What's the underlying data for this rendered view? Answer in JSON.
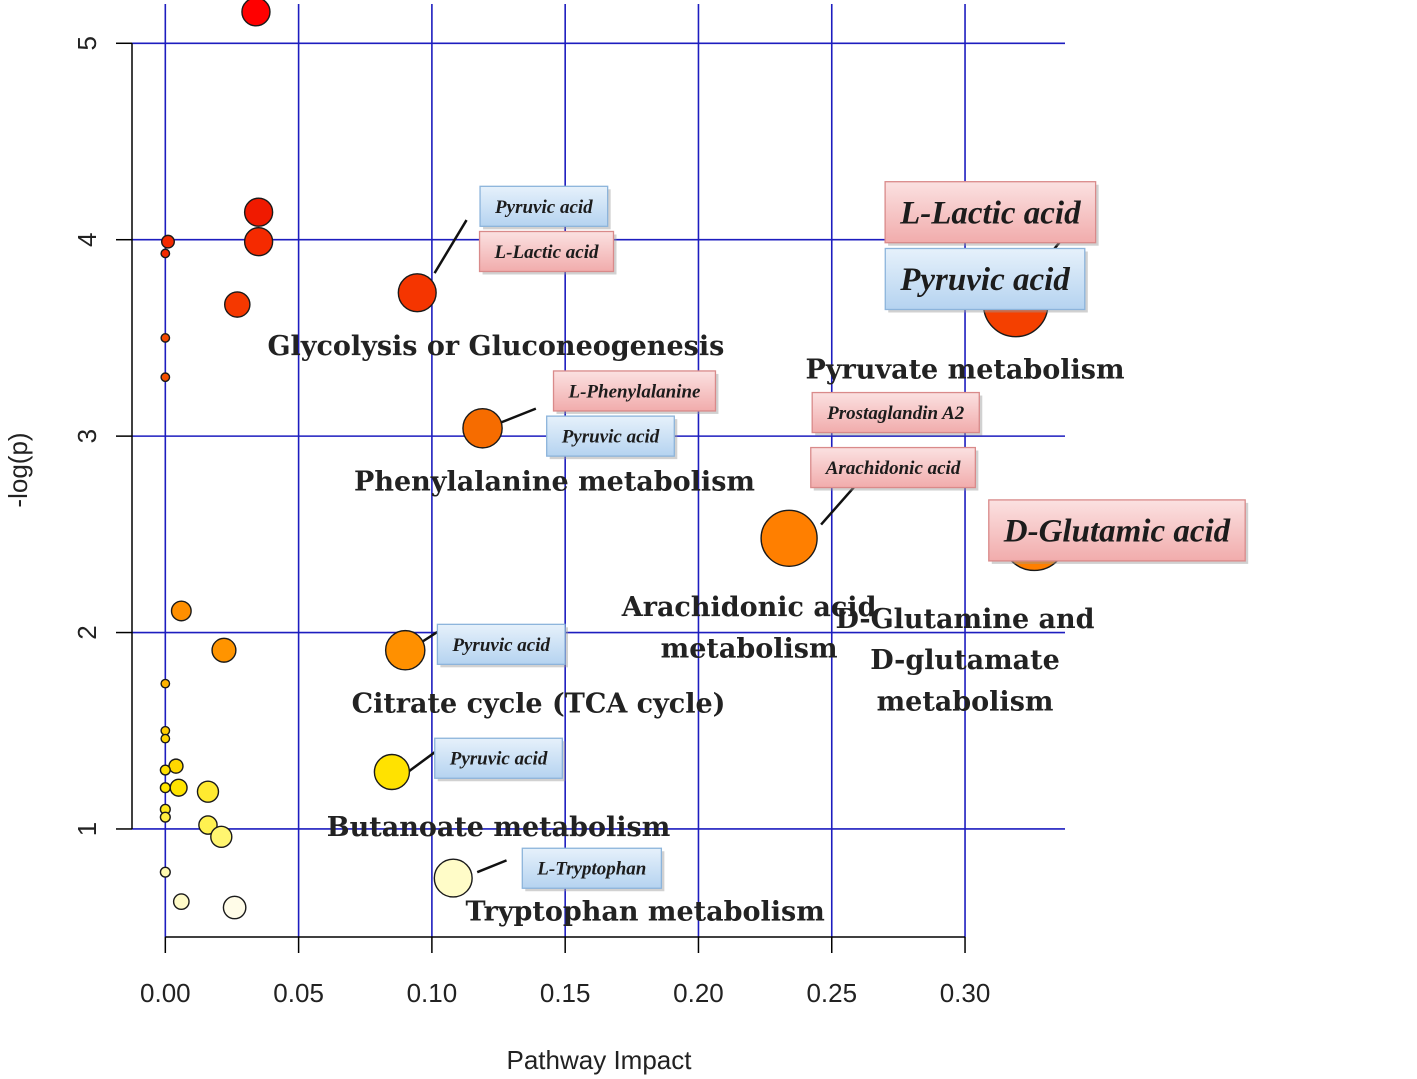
{
  "chart_data": {
    "type": "scatter",
    "title": "",
    "xlabel": "Pathway Impact",
    "ylabel": "-log(p)",
    "xlim": [
      -0.0125,
      0.3375
    ],
    "ylim": [
      0.45,
      5.2
    ],
    "xticks": [
      0.0,
      0.05,
      0.1,
      0.15,
      0.2,
      0.25,
      0.3
    ],
    "xtick_labels": [
      "0.00",
      "0.05",
      "0.10",
      "0.15",
      "0.20",
      "0.25",
      "0.30"
    ],
    "yticks": [
      1,
      2,
      3,
      4,
      5
    ],
    "ytick_labels": [
      "1",
      "2",
      "3",
      "4",
      "5"
    ],
    "grid": true,
    "grid_color": "#1d1dbf",
    "points": [
      {
        "x": 0.034,
        "y": 5.16,
        "size": 1,
        "color": "#ff0000"
      },
      {
        "x": 0.035,
        "y": 4.14,
        "size": 1,
        "color": "#f01a00"
      },
      {
        "x": 0.035,
        "y": 3.99,
        "size": 1,
        "color": "#f52a00"
      },
      {
        "x": 0.001,
        "y": 3.99,
        "size": 0.45,
        "color": "#f42a00"
      },
      {
        "x": 0.0,
        "y": 3.93,
        "size": 0.3,
        "color": "#f42a00"
      },
      {
        "x": 0.027,
        "y": 3.67,
        "size": 0.9,
        "color": "#f53800"
      },
      {
        "x": 0.0,
        "y": 3.5,
        "size": 0.3,
        "color": "#f54a00"
      },
      {
        "x": 0.0,
        "y": 3.3,
        "size": 0.3,
        "color": "#f55000"
      },
      {
        "x": 0.0945,
        "y": 3.73,
        "size": 1.35,
        "color": "#f53500"
      },
      {
        "x": 0.119,
        "y": 3.04,
        "size": 1.4,
        "color": "#f66c00"
      },
      {
        "x": 0.234,
        "y": 2.48,
        "size": 2.0,
        "color": "#ff7f00"
      },
      {
        "x": 0.319,
        "y": 3.67,
        "size": 2.3,
        "color": "#f44000"
      },
      {
        "x": 0.326,
        "y": 2.48,
        "size": 2.3,
        "color": "#ff7f00"
      },
      {
        "x": 0.006,
        "y": 2.11,
        "size": 0.7,
        "color": "#ff8f00"
      },
      {
        "x": 0.022,
        "y": 1.91,
        "size": 0.85,
        "color": "#ff9400"
      },
      {
        "x": 0.09,
        "y": 1.91,
        "size": 1.4,
        "color": "#ff9000"
      },
      {
        "x": 0.0,
        "y": 1.74,
        "size": 0.3,
        "color": "#ffb300"
      },
      {
        "x": 0.0,
        "y": 1.5,
        "size": 0.3,
        "color": "#ffcc00"
      },
      {
        "x": 0.0,
        "y": 1.46,
        "size": 0.3,
        "color": "#ffd400"
      },
      {
        "x": 0.004,
        "y": 1.32,
        "size": 0.5,
        "color": "#ffd800"
      },
      {
        "x": 0.0,
        "y": 1.3,
        "size": 0.35,
        "color": "#ffe000"
      },
      {
        "x": 0.0,
        "y": 1.21,
        "size": 0.35,
        "color": "#ffe600"
      },
      {
        "x": 0.005,
        "y": 1.21,
        "size": 0.6,
        "color": "#ffe400"
      },
      {
        "x": 0.0,
        "y": 1.1,
        "size": 0.35,
        "color": "#ffea1a"
      },
      {
        "x": 0.0,
        "y": 1.06,
        "size": 0.35,
        "color": "#ffee40"
      },
      {
        "x": 0.016,
        "y": 1.19,
        "size": 0.75,
        "color": "#ffea30"
      },
      {
        "x": 0.016,
        "y": 1.02,
        "size": 0.65,
        "color": "#fff150"
      },
      {
        "x": 0.021,
        "y": 0.96,
        "size": 0.75,
        "color": "#fff570"
      },
      {
        "x": 0.085,
        "y": 1.29,
        "size": 1.25,
        "color": "#ffe200"
      },
      {
        "x": 0.0,
        "y": 0.78,
        "size": 0.35,
        "color": "#fff9b0"
      },
      {
        "x": 0.006,
        "y": 0.63,
        "size": 0.55,
        "color": "#fffbc8"
      },
      {
        "x": 0.026,
        "y": 0.6,
        "size": 0.8,
        "color": "#fffce8"
      },
      {
        "x": 0.108,
        "y": 0.75,
        "size": 1.35,
        "color": "#fffcc8"
      }
    ],
    "pathway_labels": [
      {
        "text": "Glycolysis or Gluconeogenesis",
        "x": 0.124,
        "y": 3.46,
        "size": "medium"
      },
      {
        "text": "Pyruvate metabolism",
        "x": 0.3,
        "y": 3.34,
        "size": "medium"
      },
      {
        "text": "Phenylalanine metabolism",
        "x": 0.146,
        "y": 2.77,
        "size": "medium"
      },
      {
        "text": "Arachidonic acid",
        "x": 0.219,
        "y": 2.13,
        "size": "medium"
      },
      {
        "text": "metabolism",
        "x": 0.219,
        "y": 1.92,
        "size": "medium"
      },
      {
        "text": "D-Glutamine and",
        "x": 0.3,
        "y": 2.07,
        "size": "medium"
      },
      {
        "text": "D-glutamate",
        "x": 0.3,
        "y": 1.86,
        "size": "medium"
      },
      {
        "text": "metabolism",
        "x": 0.3,
        "y": 1.65,
        "size": "medium"
      },
      {
        "text": "Citrate cycle (TCA cycle)",
        "x": 0.14,
        "y": 1.64,
        "size": "small"
      },
      {
        "text": "Butanoate metabolism",
        "x": 0.125,
        "y": 1.01,
        "size": "medium"
      },
      {
        "text": "Tryptophan metabolism",
        "x": 0.18,
        "y": 0.58,
        "size": "medium"
      }
    ],
    "compound_labels": [
      {
        "text": "Pyruvic acid",
        "kind": "blue",
        "x": 0.142,
        "y": 4.17,
        "size": "small"
      },
      {
        "text": "L-Lactic acid",
        "kind": "red",
        "x": 0.143,
        "y": 3.94,
        "size": "small"
      },
      {
        "text": "L-Lactic acid",
        "kind": "red",
        "x": 0.3095,
        "y": 4.14,
        "size": "large"
      },
      {
        "text": "Pyruvic acid",
        "kind": "blue",
        "x": 0.3075,
        "y": 3.8,
        "size": "large"
      },
      {
        "text": "L-Phenylalanine",
        "kind": "red",
        "x": 0.176,
        "y": 3.23,
        "size": "small"
      },
      {
        "text": "Pyruvic acid",
        "kind": "blue",
        "x": 0.167,
        "y": 3.0,
        "size": "small"
      },
      {
        "text": "Prostaglandin A2",
        "kind": "red",
        "x": 0.274,
        "y": 3.12,
        "size": "small"
      },
      {
        "text": "Arachidonic acid",
        "kind": "red",
        "x": 0.273,
        "y": 2.84,
        "size": "small"
      },
      {
        "text": "D-Glutamic acid",
        "kind": "red",
        "x": 0.357,
        "y": 2.52,
        "size": "large"
      },
      {
        "text": "Pyruvic acid",
        "kind": "blue",
        "x": 0.126,
        "y": 1.94,
        "size": "small"
      },
      {
        "text": "Pyruvic acid",
        "kind": "blue",
        "x": 0.125,
        "y": 1.36,
        "size": "small"
      },
      {
        "text": "L-Tryptophan",
        "kind": "blue",
        "x": 0.16,
        "y": 0.8,
        "size": "small"
      }
    ],
    "connectors": [
      {
        "from": [
          0.101,
          3.83
        ],
        "to": [
          0.113,
          4.1
        ]
      },
      {
        "from": [
          0.126,
          3.07
        ],
        "to": [
          0.139,
          3.14
        ]
      },
      {
        "from": [
          0.246,
          2.55
        ],
        "to": [
          0.259,
          2.75
        ]
      },
      {
        "from": [
          0.328,
          3.86
        ],
        "to": [
          0.338,
          4.03
        ]
      },
      {
        "from": [
          0.3385,
          2.4
        ],
        "to": [
          0.3462,
          2.45
        ]
      },
      {
        "from": [
          0.096,
          1.95
        ],
        "to": [
          0.104,
          2.02
        ]
      },
      {
        "from": [
          0.091,
          1.29
        ],
        "to": [
          0.103,
          1.41
        ]
      },
      {
        "from": [
          0.117,
          0.78
        ],
        "to": [
          0.128,
          0.84
        ]
      }
    ],
    "label_colors": {
      "blue_fill": "#c7e0f7",
      "blue_edge": "#8cb4db",
      "red_fill": "#f6c2c2",
      "red_edge": "#d98a8a"
    }
  }
}
